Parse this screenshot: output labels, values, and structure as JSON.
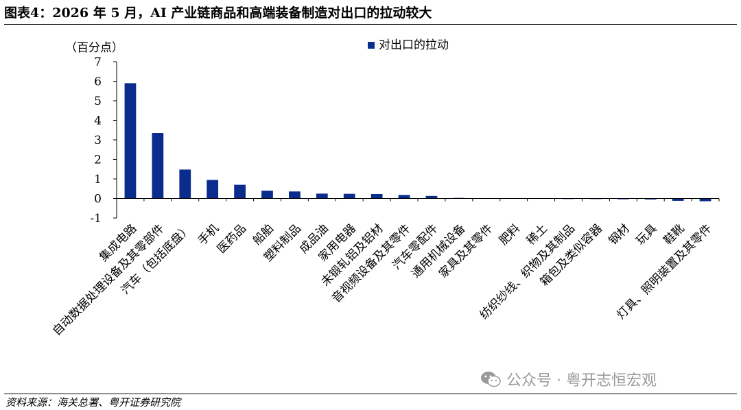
{
  "header": {
    "title": "图表4：2026 年 5 月，AI 产业链商品和高端装备制造对出口的拉动较大"
  },
  "footer": {
    "source": "资料来源：海关总署、粤开证券研究院",
    "watermark": "公众号 · 粤开志恒宏观",
    "watermark_icon": "wechat-icon"
  },
  "colors": {
    "bar": "#0a2c8c",
    "axis": "#000000"
  },
  "chart_data": {
    "type": "bar",
    "ylabel": "（百分点）",
    "ylim": [
      -1,
      7
    ],
    "yticks": [
      -1,
      0,
      1,
      2,
      3,
      4,
      5,
      6,
      7
    ],
    "legend": "top-center",
    "grid": false,
    "categories": [
      "集成电路",
      "自动数据处理设备及其零部件",
      "汽车（包括底盘）",
      "手机",
      "医药品",
      "船舶",
      "塑料制品",
      "成品油",
      "家用电器",
      "未锻轧铝及铝材",
      "音视频设备及其零件",
      "汽车零配件",
      "通用机械设备",
      "家具及其零件",
      "肥料",
      "稀土",
      "纺织纱线、织物及其制品",
      "箱包及类似容器",
      "钢材",
      "玩具",
      "鞋靴",
      "灯具、照明装置及其零件"
    ],
    "series": [
      {
        "name": "对出口的拉动",
        "values": [
          5.9,
          3.35,
          1.48,
          0.95,
          0.7,
          0.4,
          0.36,
          0.25,
          0.24,
          0.23,
          0.18,
          0.13,
          0.03,
          0.01,
          0.0,
          0.0,
          -0.01,
          -0.03,
          -0.04,
          -0.05,
          -0.12,
          -0.14
        ]
      }
    ]
  }
}
